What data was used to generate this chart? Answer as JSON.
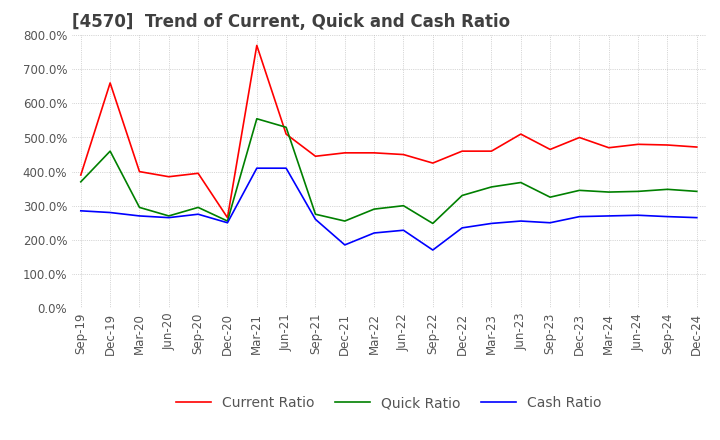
{
  "title": "[4570]  Trend of Current, Quick and Cash Ratio",
  "x_labels": [
    "Sep-19",
    "Dec-19",
    "Mar-20",
    "Jun-20",
    "Sep-20",
    "Dec-20",
    "Mar-21",
    "Jun-21",
    "Sep-21",
    "Dec-21",
    "Mar-22",
    "Jun-22",
    "Sep-22",
    "Dec-22",
    "Mar-23",
    "Jun-23",
    "Sep-23",
    "Dec-23",
    "Mar-24",
    "Jun-24",
    "Sep-24",
    "Dec-24"
  ],
  "current_ratio": [
    390,
    660,
    400,
    385,
    395,
    265,
    770,
    510,
    445,
    455,
    455,
    450,
    425,
    460,
    460,
    510,
    465,
    500,
    470,
    480,
    478,
    472
  ],
  "quick_ratio": [
    370,
    460,
    295,
    270,
    295,
    255,
    555,
    530,
    275,
    255,
    290,
    300,
    248,
    330,
    355,
    368,
    325,
    345,
    340,
    342,
    348,
    342
  ],
  "cash_ratio": [
    285,
    280,
    270,
    265,
    275,
    250,
    410,
    410,
    260,
    185,
    220,
    228,
    170,
    235,
    248,
    255,
    250,
    268,
    270,
    272,
    268,
    265
  ],
  "ylim": [
    0,
    800
  ],
  "yticks": [
    0,
    100,
    200,
    300,
    400,
    500,
    600,
    700,
    800
  ],
  "current_color": "#ff0000",
  "quick_color": "#008000",
  "cash_color": "#0000ff",
  "background_color": "#ffffff",
  "grid_color": "#aaaaaa",
  "title_color": "#404040",
  "title_fontsize": 12,
  "legend_fontsize": 10,
  "tick_fontsize": 8.5
}
